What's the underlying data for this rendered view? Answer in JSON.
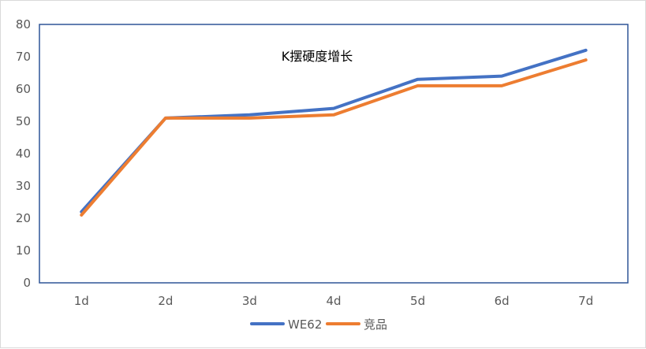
{
  "chart_data": {
    "type": "line",
    "title": "K摆硬度增长",
    "xlabel": "",
    "ylabel": "",
    "categories": [
      "1d",
      "2d",
      "3d",
      "4d",
      "5d",
      "6d",
      "7d"
    ],
    "ylim": [
      0,
      80
    ],
    "yticks": [
      "0",
      "10",
      "20",
      "30",
      "40",
      "50",
      "60",
      "70",
      "80"
    ],
    "grid": false,
    "legend_position": "bottom",
    "series": [
      {
        "name": "WE62",
        "color": "#4472C4",
        "values": [
          22,
          51,
          52,
          54,
          63,
          64,
          72
        ]
      },
      {
        "name": "竞品",
        "color": "#ED7D31",
        "values": [
          21,
          51,
          51,
          52,
          61,
          61,
          69
        ]
      }
    ],
    "plot_border_color": "#2F5597"
  }
}
